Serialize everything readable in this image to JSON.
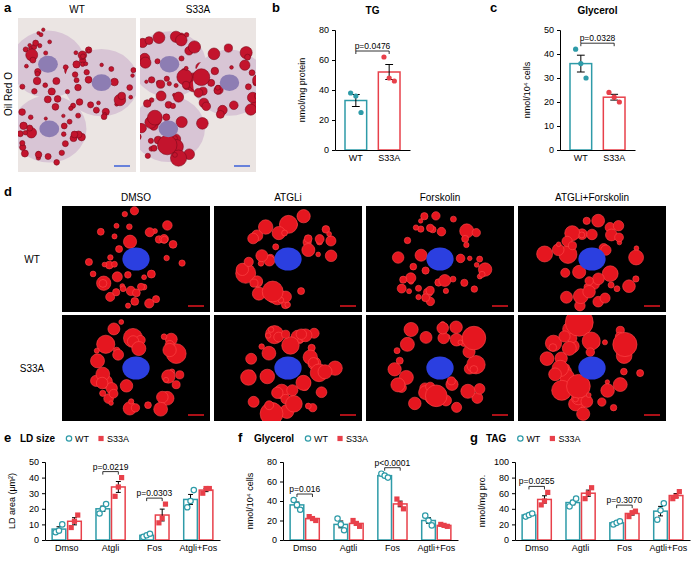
{
  "panel_labels": [
    "a",
    "b",
    "c",
    "d",
    "e",
    "f",
    "g"
  ],
  "images": [
    {
      "side_label": "Oil Red O",
      "columns": [
        "WT",
        "S33A"
      ]
    },
    {
      "columns": [
        "DMSO",
        "ATGLi",
        "Forskolin",
        "ATGLi+Forskolin"
      ],
      "rows": [
        "WT",
        "S33A"
      ]
    }
  ],
  "chart_data": [
    {
      "type": "bar",
      "title": "TG",
      "y_label": "nmol/mg protein",
      "categories": [
        "WT",
        "S33A"
      ],
      "values": [
        33,
        52
      ],
      "errors": [
        4,
        5
      ],
      "points": [
        [
          38,
          36,
          25
        ],
        [
          62,
          48,
          46
        ]
      ],
      "colors": [
        "#2e9ba8",
        "#e8404a"
      ],
      "ylim": [
        0,
        80
      ],
      "yticks": [
        0,
        20,
        40,
        60,
        80
      ],
      "annotation": "p=0.0476"
    },
    {
      "type": "bar",
      "title": "Glycerol",
      "y_label": "nmol/10⁴ cells",
      "categories": [
        "WT",
        "S33A"
      ],
      "values": [
        36,
        22
      ],
      "errors": [
        3.5,
        1.2
      ],
      "points": [
        [
          42,
          36,
          30
        ],
        [
          24,
          22,
          20
        ]
      ],
      "colors": [
        "#2e9ba8",
        "#e8404a"
      ],
      "ylim": [
        0,
        50
      ],
      "yticks": [
        0,
        10,
        20,
        30,
        40,
        50
      ],
      "annotation": "p=0.0328"
    },
    {
      "type": "bar",
      "title": "LD size",
      "y_label": "LD area (μm²)",
      "categories": [
        "Dmso",
        "Atgli",
        "Fos",
        "Atgli+Fos"
      ],
      "series": [
        {
          "name": "WT",
          "color": "#2e9ba8",
          "marker": "circle",
          "values": [
            7,
            20,
            3,
            26
          ],
          "errors": [
            1.5,
            1.7,
            0.6,
            3.2
          ],
          "points": [
            [
              5,
              6,
              10
            ],
            [
              17,
              20,
              23
            ],
            [
              2,
              3,
              4
            ],
            [
              21,
              25,
              32
            ]
          ]
        },
        {
          "name": "S33A",
          "color": "#e8404a",
          "marker": "square",
          "values": [
            12,
            34,
            16,
            32
          ],
          "errors": [
            2.3,
            3.5,
            3.8,
            1
          ],
          "points": [
            [
              8,
              12,
              16
            ],
            [
              28,
              34,
              40
            ],
            [
              11,
              14,
              23
            ],
            [
              30,
              33,
              33
            ]
          ]
        }
      ],
      "annotations": [
        null,
        "p=0.0219",
        "p=0.0303",
        null
      ],
      "ylim": [
        0,
        50
      ],
      "yticks": [
        0,
        10,
        20,
        30,
        40,
        50
      ],
      "legend": "top"
    },
    {
      "type": "bar",
      "title": "Glycerol",
      "y_label": "nmol/10⁴ cells",
      "categories": [
        "Dmso",
        "Agtli",
        "Fos",
        "Agtli+Fos"
      ],
      "series": [
        {
          "name": "WT",
          "color": "#2e9ba8",
          "marker": "circle",
          "values": [
            36,
            16,
            66,
            20
          ],
          "errors": [
            2.9,
            3.5,
            1.2,
            2.9
          ],
          "points": [
            [
              41,
              36,
              31
            ],
            [
              22,
              16,
              10
            ],
            [
              68,
              66,
              64
            ],
            [
              25,
              20,
              15
            ]
          ]
        },
        {
          "name": "S33A",
          "color": "#e8404a",
          "marker": "square",
          "values": [
            22,
            17,
            37,
            15
          ],
          "errors": [
            1.2,
            1.7,
            2.9,
            0.6
          ],
          "points": [
            [
              24,
              22,
              20
            ],
            [
              20,
              17,
              14
            ],
            [
              42,
              37,
              32
            ],
            [
              16,
              15,
              14
            ]
          ]
        }
      ],
      "annotations": [
        "p=0.016",
        null,
        "p<0.0001",
        null
      ],
      "ylim": [
        0,
        80
      ],
      "yticks": [
        0,
        20,
        40,
        60,
        80
      ],
      "legend": "top"
    },
    {
      "type": "bar",
      "title": "TAG",
      "y_label": "nmol/mg pro.",
      "categories": [
        "Dmso",
        "Agtli",
        "Fos",
        "Agtli+Fos"
      ],
      "series": [
        {
          "name": "WT",
          "color": "#2e9ba8",
          "marker": "circle",
          "values": [
            32,
            48,
            22,
            37
          ],
          "errors": [
            1.2,
            2.9,
            1.2,
            6.1
          ],
          "points": [
            [
              30,
              32,
              34
            ],
            [
              43,
              48,
              53
            ],
            [
              20,
              22,
              24
            ],
            [
              26,
              38,
              47
            ]
          ]
        },
        {
          "name": "S33A",
          "color": "#e8404a",
          "marker": "square",
          "values": [
            52,
            60,
            34,
            57
          ],
          "errors": [
            4.7,
            4,
            2.1,
            2.6
          ],
          "points": [
            [
              45,
              50,
              61
            ],
            [
              53,
              60,
              67
            ],
            [
              30,
              35,
              37
            ],
            [
              53,
              56,
              62
            ]
          ]
        }
      ],
      "annotations": [
        "p=0.0255",
        null,
        "p=0.3070",
        null
      ],
      "ylim": [
        0,
        100
      ],
      "yticks": [
        0,
        20,
        40,
        60,
        80,
        100
      ],
      "legend": "top"
    }
  ]
}
